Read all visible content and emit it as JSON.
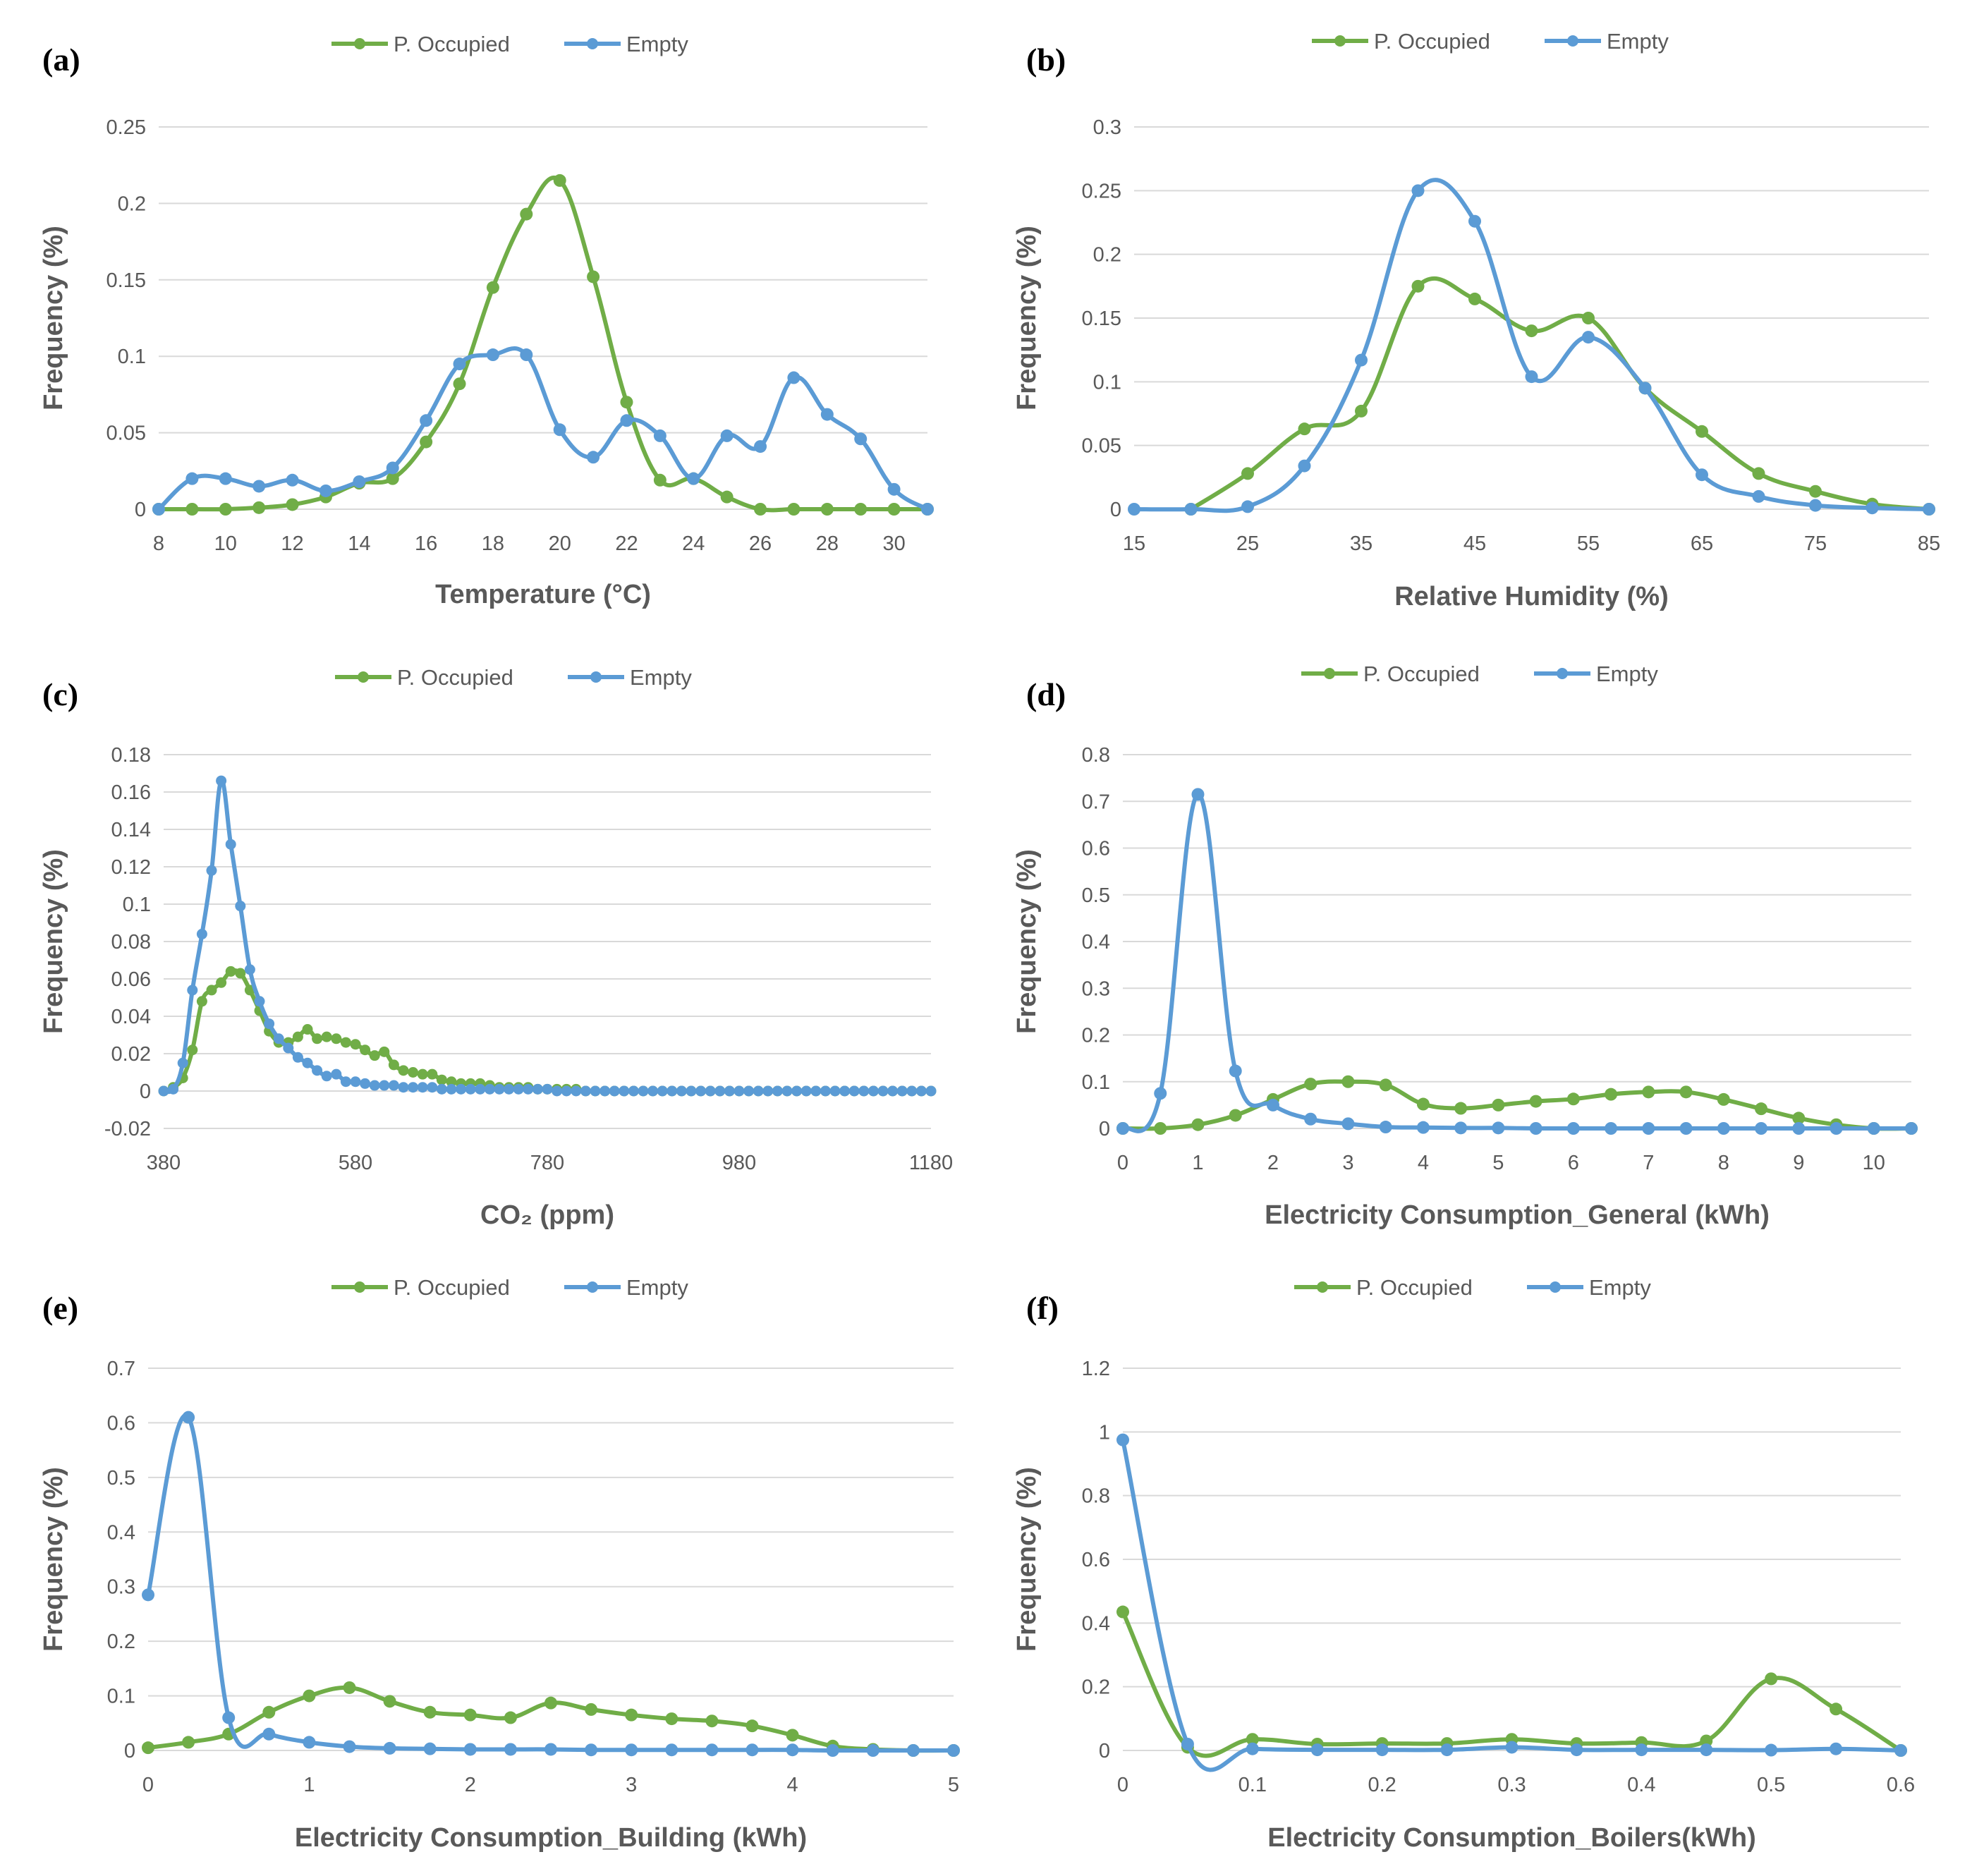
{
  "figure": {
    "colors": {
      "occupied": "#70AD47",
      "empty": "#5B9BD5",
      "grid": "#D9D9D9",
      "text": "#595959"
    },
    "legend_occupied": "P. Occupied",
    "legend_empty": "Empty",
    "ylabel": "Frequency (%)"
  },
  "chart_data": [
    {
      "panel": "(a)",
      "type": "line",
      "xlabel": "Temperature (°C)",
      "ylabel": "Frequency (%)",
      "xlim": [
        8,
        31
      ],
      "ylim": [
        0,
        0.25
      ],
      "xticks": [
        8,
        10,
        12,
        14,
        16,
        18,
        20,
        22,
        24,
        26,
        28,
        30
      ],
      "xtick_labels": [
        "8",
        "10",
        "12",
        "14",
        "16",
        "18",
        "20",
        "22",
        "24",
        "26",
        "28",
        "30"
      ],
      "yticks": [
        0,
        0.05,
        0.1,
        0.15,
        0.2,
        0.25
      ],
      "ytick_labels": [
        "0",
        "0.05",
        "0.1",
        "0.15",
        "0.2",
        "0.25"
      ],
      "legend": [
        "P. Occupied",
        "Empty"
      ],
      "series": [
        {
          "name": "P. Occupied",
          "x": [
            8,
            9,
            10,
            11,
            12,
            13,
            14,
            15,
            16,
            17,
            18,
            19,
            20,
            21,
            22,
            23,
            24,
            25,
            26,
            27,
            28,
            29,
            30,
            31
          ],
          "y": [
            0,
            0,
            0,
            0.001,
            0.003,
            0.008,
            0.017,
            0.02,
            0.044,
            0.082,
            0.145,
            0.193,
            0.215,
            0.152,
            0.07,
            0.019,
            0.02,
            0.008,
            0,
            0,
            0,
            0,
            0,
            0
          ]
        },
        {
          "name": "Empty",
          "x": [
            8,
            9,
            10,
            11,
            12,
            13,
            14,
            15,
            16,
            17,
            18,
            19,
            20,
            21,
            22,
            23,
            24,
            25,
            26,
            27,
            28,
            29,
            30,
            31
          ],
          "y": [
            0,
            0.02,
            0.02,
            0.015,
            0.019,
            0.012,
            0.018,
            0.027,
            0.058,
            0.095,
            0.101,
            0.101,
            0.052,
            0.034,
            0.058,
            0.048,
            0.02,
            0.048,
            0.041,
            0.086,
            0.062,
            0.046,
            0.013,
            0
          ]
        }
      ]
    },
    {
      "panel": "(b)",
      "type": "line",
      "xlabel": "Relative Humidity (%)",
      "ylabel": "Frequency (%)",
      "xlim": [
        15,
        85
      ],
      "ylim": [
        0,
        0.3
      ],
      "xticks": [
        15,
        25,
        35,
        45,
        55,
        65,
        75,
        85
      ],
      "xtick_labels": [
        "15",
        "25",
        "35",
        "45",
        "55",
        "65",
        "75",
        "85"
      ],
      "yticks": [
        0,
        0.05,
        0.1,
        0.15,
        0.2,
        0.25,
        0.3
      ],
      "ytick_labels": [
        "0",
        "0.05",
        "0.1",
        "0.15",
        "0.2",
        "0.25",
        "0.3"
      ],
      "legend": [
        "P. Occupied",
        "Empty"
      ],
      "series": [
        {
          "name": "P. Occupied",
          "x": [
            20,
            25,
            30,
            35,
            40,
            45,
            50,
            55,
            60,
            65,
            70,
            75,
            80,
            85
          ],
          "y": [
            0,
            0.028,
            0.063,
            0.077,
            0.175,
            0.165,
            0.14,
            0.15,
            0.095,
            0.061,
            0.028,
            0.014,
            0.004,
            0
          ]
        },
        {
          "name": "Empty",
          "x": [
            15,
            20,
            25,
            30,
            35,
            40,
            45,
            50,
            55,
            60,
            65,
            70,
            75,
            80,
            85
          ],
          "y": [
            0,
            0,
            0.002,
            0.034,
            0.117,
            0.25,
            0.226,
            0.104,
            0.135,
            0.095,
            0.027,
            0.01,
            0.003,
            0.001,
            0
          ]
        }
      ]
    },
    {
      "panel": "(c)",
      "type": "line",
      "xlabel": "CO₂ (ppm)",
      "ylabel": "Frequency (%)",
      "xlim": [
        380,
        1180
      ],
      "ylim": [
        -0.02,
        0.18
      ],
      "xticks": [
        380,
        580,
        780,
        980,
        1180
      ],
      "xtick_labels": [
        "380",
        "580",
        "780",
        "980",
        "1180"
      ],
      "yticks": [
        -0.02,
        0,
        0.02,
        0.04,
        0.06,
        0.08,
        0.1,
        0.12,
        0.14,
        0.16,
        0.18
      ],
      "ytick_labels": [
        "-0.02",
        "0",
        "0.02",
        "0.04",
        "0.06",
        "0.08",
        "0.1",
        "0.12",
        "0.14",
        "0.16",
        "0.18"
      ],
      "legend": [
        "P. Occupied",
        "Empty"
      ],
      "series": [
        {
          "name": "P. Occupied",
          "x": [
            380,
            390,
            400,
            410,
            420,
            430,
            440,
            450,
            460,
            470,
            480,
            490,
            500,
            510,
            520,
            530,
            540,
            550,
            560,
            570,
            580,
            590,
            600,
            610,
            620,
            630,
            640,
            650,
            660,
            670,
            680,
            690,
            700,
            710,
            720,
            730,
            740,
            750,
            760,
            770,
            780,
            790,
            800,
            810,
            820,
            830,
            840,
            850,
            860,
            870,
            880,
            890,
            900,
            910,
            920,
            930,
            940,
            950,
            960,
            970,
            980,
            990,
            1000,
            1010,
            1020,
            1030,
            1040,
            1050,
            1060,
            1070,
            1080,
            1090,
            1100,
            1110,
            1120,
            1130,
            1140,
            1150,
            1160,
            1170,
            1180
          ],
          "y": [
            0,
            0.002,
            0.007,
            0.022,
            0.048,
            0.054,
            0.058,
            0.064,
            0.063,
            0.054,
            0.043,
            0.032,
            0.026,
            0.026,
            0.029,
            0.033,
            0.028,
            0.029,
            0.028,
            0.026,
            0.025,
            0.022,
            0.019,
            0.021,
            0.014,
            0.011,
            0.01,
            0.009,
            0.009,
            0.006,
            0.005,
            0.004,
            0.004,
            0.004,
            0.003,
            0.002,
            0.002,
            0.002,
            0.002,
            0.001,
            0.001,
            0.001,
            0.001,
            0.001,
            0,
            0,
            0,
            0,
            0,
            0,
            0,
            0,
            0,
            0,
            0,
            0,
            0,
            0,
            0,
            0,
            0,
            0,
            0,
            0,
            0,
            0,
            0,
            0,
            0,
            0,
            0,
            0,
            0,
            0,
            0,
            0,
            0,
            0,
            0,
            0,
            0
          ]
        },
        {
          "name": "Empty",
          "x": [
            380,
            390,
            400,
            410,
            420,
            430,
            440,
            450,
            460,
            470,
            480,
            490,
            500,
            510,
            520,
            530,
            540,
            550,
            560,
            570,
            580,
            590,
            600,
            610,
            620,
            630,
            640,
            650,
            660,
            670,
            680,
            690,
            700,
            710,
            720,
            730,
            740,
            750,
            760,
            770,
            780,
            790,
            800,
            810,
            820,
            830,
            840,
            850,
            860,
            870,
            880,
            890,
            900,
            910,
            920,
            930,
            940,
            950,
            960,
            970,
            980,
            990,
            1000,
            1010,
            1020,
            1030,
            1040,
            1050,
            1060,
            1070,
            1080,
            1090,
            1100,
            1110,
            1120,
            1130,
            1140,
            1150,
            1160,
            1170,
            1180
          ],
          "y": [
            0,
            0.001,
            0.015,
            0.054,
            0.084,
            0.118,
            0.166,
            0.132,
            0.099,
            0.065,
            0.048,
            0.036,
            0.028,
            0.023,
            0.018,
            0.015,
            0.011,
            0.008,
            0.009,
            0.005,
            0.005,
            0.004,
            0.003,
            0.003,
            0.003,
            0.002,
            0.002,
            0.002,
            0.002,
            0.001,
            0.001,
            0.001,
            0.001,
            0.001,
            0.001,
            0.001,
            0.001,
            0.001,
            0.001,
            0.001,
            0.001,
            0,
            0,
            0,
            0,
            0,
            0,
            0,
            0,
            0,
            0,
            0,
            0,
            0,
            0,
            0,
            0,
            0,
            0,
            0,
            0,
            0,
            0,
            0,
            0,
            0,
            0,
            0,
            0,
            0,
            0,
            0,
            0,
            0,
            0,
            0,
            0,
            0,
            0,
            0,
            0
          ]
        }
      ]
    },
    {
      "panel": "(d)",
      "type": "line",
      "xlabel": "Electricity Consumption_General (kWh)",
      "ylabel": "Frequency (%)",
      "xlim": [
        0,
        10.5
      ],
      "ylim": [
        0,
        0.8
      ],
      "xticks": [
        0,
        1,
        2,
        3,
        4,
        5,
        6,
        7,
        8,
        9,
        10
      ],
      "xtick_labels": [
        "0",
        "1",
        "2",
        "3",
        "4",
        "5",
        "6",
        "7",
        "8",
        "9",
        "10"
      ],
      "yticks": [
        0,
        0.1,
        0.2,
        0.3,
        0.4,
        0.5,
        0.6,
        0.7,
        0.8
      ],
      "ytick_labels": [
        "0",
        "0.1",
        "0.2",
        "0.3",
        "0.4",
        "0.5",
        "0.6",
        "0.7",
        "0.8"
      ],
      "legend": [
        "P. Occupied",
        "Empty"
      ],
      "series": [
        {
          "name": "P. Occupied",
          "x": [
            0,
            0.5,
            1,
            1.5,
            2,
            2.5,
            3,
            3.5,
            4,
            4.5,
            5,
            5.5,
            6,
            6.5,
            7,
            7.5,
            8,
            8.5,
            9,
            9.5,
            10,
            10.5
          ],
          "y": [
            0,
            0,
            0.008,
            0.028,
            0.062,
            0.095,
            0.1,
            0.093,
            0.052,
            0.043,
            0.05,
            0.058,
            0.063,
            0.073,
            0.078,
            0.078,
            0.062,
            0.042,
            0.022,
            0.008,
            0,
            0
          ]
        },
        {
          "name": "Empty",
          "x": [
            0,
            0.5,
            1,
            1.5,
            2,
            2.5,
            3,
            3.5,
            4,
            4.5,
            5,
            5.5,
            6,
            6.5,
            7,
            7.5,
            8,
            8.5,
            9,
            9.5,
            10,
            10.5
          ],
          "y": [
            0,
            0.075,
            0.715,
            0.123,
            0.05,
            0.02,
            0.01,
            0.003,
            0.002,
            0.001,
            0.001,
            0,
            0,
            0,
            0,
            0,
            0,
            0,
            0,
            0,
            0,
            0
          ]
        }
      ]
    },
    {
      "panel": "(e)",
      "type": "line",
      "xlabel": "Electricity Consumption_Building (kWh)",
      "ylabel": "Frequency (%)",
      "xlim": [
        0,
        5
      ],
      "ylim": [
        0,
        0.7
      ],
      "xticks": [
        0,
        1,
        2,
        3,
        4,
        5
      ],
      "xtick_labels": [
        "0",
        "1",
        "2",
        "3",
        "4",
        "5"
      ],
      "yticks": [
        0,
        0.1,
        0.2,
        0.3,
        0.4,
        0.5,
        0.6,
        0.7
      ],
      "ytick_labels": [
        "0",
        "0.1",
        "0.2",
        "0.3",
        "0.4",
        "0.5",
        "0.6",
        "0.7"
      ],
      "legend": [
        "P. Occupied",
        "Empty"
      ],
      "series": [
        {
          "name": "P. Occupied",
          "x": [
            0,
            0.25,
            0.5,
            0.75,
            1,
            1.25,
            1.5,
            1.75,
            2,
            2.25,
            2.5,
            2.75,
            3,
            3.25,
            3.5,
            3.75,
            4,
            4.25,
            4.5,
            4.75,
            5
          ],
          "y": [
            0.005,
            0.015,
            0.03,
            0.07,
            0.1,
            0.115,
            0.09,
            0.07,
            0.065,
            0.06,
            0.087,
            0.075,
            0.065,
            0.058,
            0.054,
            0.045,
            0.028,
            0.008,
            0.002,
            0,
            0
          ]
        },
        {
          "name": "Empty",
          "x": [
            0,
            0.25,
            0.5,
            0.75,
            1,
            1.25,
            1.5,
            1.75,
            2,
            2.25,
            2.5,
            2.75,
            3,
            3.25,
            3.5,
            3.75,
            4,
            4.25,
            4.5,
            4.75,
            5
          ],
          "y": [
            0.285,
            0.61,
            0.06,
            0.03,
            0.015,
            0.007,
            0.004,
            0.003,
            0.002,
            0.002,
            0.002,
            0.001,
            0.001,
            0.001,
            0.001,
            0.001,
            0.001,
            0,
            0,
            0,
            0
          ]
        }
      ]
    },
    {
      "panel": "(f)",
      "type": "line",
      "xlabel": "Electricity Consumption_Boilers(kWh)",
      "ylabel": "Frequency (%)",
      "xlim": [
        0,
        0.6
      ],
      "ylim": [
        0,
        1.2
      ],
      "xticks": [
        0,
        0.1,
        0.2,
        0.3,
        0.4,
        0.5,
        0.6
      ],
      "xtick_labels": [
        "0",
        "0.1",
        "0.2",
        "0.3",
        "0.4",
        "0.5",
        "0.6"
      ],
      "yticks": [
        0,
        0.2,
        0.4,
        0.6,
        0.8,
        1,
        1.2
      ],
      "ytick_labels": [
        "0",
        "0.2",
        "0.4",
        "0.6",
        "0.8",
        "1",
        "1.2"
      ],
      "legend": [
        "P. Occupied",
        "Empty"
      ],
      "series": [
        {
          "name": "P. Occupied",
          "x": [
            0,
            0.05,
            0.1,
            0.15,
            0.2,
            0.25,
            0.3,
            0.35,
            0.4,
            0.45,
            0.5,
            0.55,
            0.6
          ],
          "y": [
            0.435,
            0.01,
            0.035,
            0.02,
            0.022,
            0.022,
            0.035,
            0.022,
            0.025,
            0.03,
            0.225,
            0.13,
            0
          ]
        },
        {
          "name": "Empty",
          "x": [
            0,
            0.05,
            0.1,
            0.15,
            0.2,
            0.25,
            0.3,
            0.35,
            0.4,
            0.45,
            0.5,
            0.55,
            0.6
          ],
          "y": [
            0.975,
            0.02,
            0.005,
            0.002,
            0.002,
            0.002,
            0.01,
            0.002,
            0.002,
            0.002,
            0.001,
            0.005,
            0
          ]
        }
      ]
    }
  ]
}
